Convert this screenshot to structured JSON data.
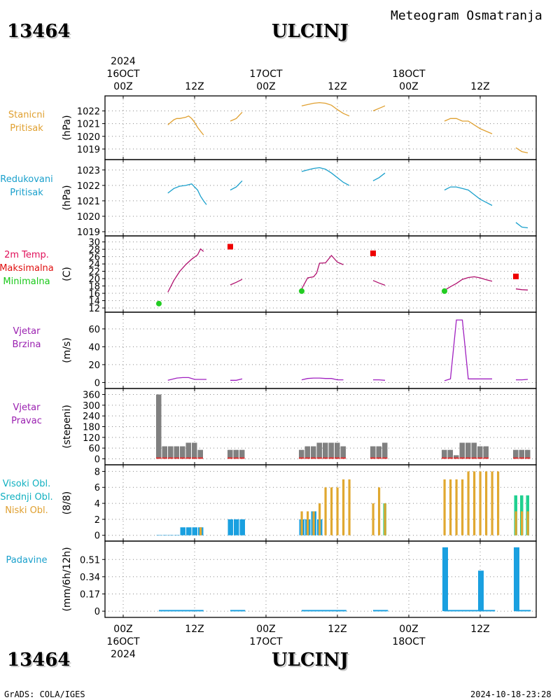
{
  "header": {
    "station_id": "13464",
    "station_name": "ULCINJ",
    "subtitle": "Meteogram Osmatranja"
  },
  "footer": {
    "station_id": "13464",
    "station_name": "ULCINJ",
    "credit": "GrADS: COLA/IGES",
    "timestamp": "2024-10-18-23:28"
  },
  "time_axis": {
    "top_year": "2024",
    "bottom_year": "2024",
    "ticks": [
      {
        "h": 0,
        "hour": "00Z",
        "date": "16OCT"
      },
      {
        "h": 12,
        "hour": "12Z",
        "date": ""
      },
      {
        "h": 24,
        "hour": "00Z",
        "date": "17OCT"
      },
      {
        "h": 36,
        "hour": "12Z",
        "date": ""
      },
      {
        "h": 48,
        "hour": "00Z",
        "date": "18OCT"
      },
      {
        "h": 60,
        "hour": "12Z",
        "date": ""
      }
    ]
  },
  "panels": [
    {
      "key": "stanicni",
      "labels": [
        "Stanicni",
        "Pritisak"
      ],
      "colors": [
        "#e0a030",
        "#e0a030"
      ],
      "unit": "(hPa)"
    },
    {
      "key": "redukovani",
      "labels": [
        "Redukovani",
        "Pritisak"
      ],
      "colors": [
        "#1aa0cc",
        "#1aa0cc"
      ],
      "unit": "(hPa)"
    },
    {
      "key": "temp",
      "labels": [
        "2m Temp.",
        "Maksimalna",
        "Minimalna"
      ],
      "colors": [
        "#e0105a",
        "#e01010",
        "#18c818"
      ],
      "unit": "(C)"
    },
    {
      "key": "brzina",
      "labels": [
        "Vjetar",
        "Brzina"
      ],
      "colors": [
        "#9a20b0",
        "#9a20b0"
      ],
      "unit": "(m/s)"
    },
    {
      "key": "pravac",
      "labels": [
        "Vjetar",
        "Pravac"
      ],
      "colors": [
        "#9a20b0",
        "#9a20b0"
      ],
      "unit": "(stepeni)"
    },
    {
      "key": "oblaci",
      "labels": [
        "Visoki Obl.",
        "Srednji Obl.",
        "Niski Obl."
      ],
      "colors": [
        "#10b0c0",
        "#10b0c0",
        "#e0a030"
      ],
      "unit": "(8/8)"
    },
    {
      "key": "padavine",
      "labels": [
        "Padavine"
      ],
      "colors": [
        "#1aa0cc"
      ],
      "unit": "(mm/6h/12h)"
    }
  ],
  "colors": {
    "station_pressure": "#e0a030",
    "msl_pressure": "#1aa0cc",
    "temperature": "#b0106e",
    "tmax_marker": "#ee0000",
    "tmin_marker": "#22cc22",
    "wind_speed": "#a020c0",
    "wind_dir_bar": "#808080",
    "wind_dir_low": "#e03030",
    "cloud_low": "#e0a830",
    "cloud_mid": "#1aa0e0",
    "cloud_high": "#20d090",
    "precip": "#1aa0e0"
  },
  "chart_data": [
    {
      "type": "line",
      "key": "stanicni",
      "ylabel": "(hPa)",
      "ylim": [
        1018.5,
        1022.85
      ],
      "yticks": [
        1019,
        1020,
        1021,
        1022
      ],
      "segments": [
        [
          [
            7.5,
            1020.9
          ],
          [
            8,
            1021.1
          ],
          [
            8.5,
            1021.3
          ],
          [
            9,
            1021.4
          ],
          [
            9.5,
            1021.4
          ],
          [
            10,
            1021.45
          ],
          [
            10.5,
            1021.5
          ],
          [
            11,
            1021.6
          ],
          [
            11.5,
            1021.4
          ],
          [
            12,
            1021.1
          ],
          [
            12.5,
            1020.7
          ],
          [
            13,
            1020.4
          ],
          [
            13.5,
            1020.1
          ]
        ],
        [
          [
            18,
            1021.2
          ],
          [
            19,
            1021.4
          ],
          [
            20,
            1021.9
          ]
        ],
        [
          [
            30,
            1022.4
          ],
          [
            31,
            1022.5
          ],
          [
            32,
            1022.6
          ],
          [
            33,
            1022.65
          ],
          [
            34,
            1022.6
          ],
          [
            35,
            1022.45
          ],
          [
            36,
            1022.1
          ],
          [
            37,
            1021.8
          ],
          [
            38,
            1021.6
          ]
        ],
        [
          [
            42,
            1022.0
          ],
          [
            43,
            1022.2
          ],
          [
            44,
            1022.4
          ]
        ],
        [
          [
            54,
            1021.2
          ],
          [
            55,
            1021.4
          ],
          [
            56,
            1021.4
          ],
          [
            57,
            1021.2
          ],
          [
            58,
            1021.2
          ],
          [
            59,
            1020.9
          ],
          [
            60,
            1020.6
          ],
          [
            61,
            1020.4
          ],
          [
            62,
            1020.2
          ]
        ],
        [
          [
            66,
            1019.1
          ],
          [
            67,
            1018.8
          ],
          [
            68,
            1018.7
          ]
        ]
      ]
    },
    {
      "type": "line",
      "key": "redukovani",
      "ylabel": "(hPa)",
      "ylim": [
        1019,
        1023.4
      ],
      "yticks": [
        1019,
        1020,
        1021,
        1022,
        1023
      ],
      "segments": [
        [
          [
            7.5,
            1021.5
          ],
          [
            8.5,
            1021.8
          ],
          [
            9.5,
            1021.95
          ],
          [
            10.5,
            1022.0
          ],
          [
            11.5,
            1022.1
          ],
          [
            12.5,
            1021.7
          ],
          [
            13,
            1021.3
          ],
          [
            13.5,
            1021.0
          ],
          [
            14,
            1020.75
          ]
        ],
        [
          [
            18,
            1021.7
          ],
          [
            19,
            1021.9
          ],
          [
            20,
            1022.3
          ]
        ],
        [
          [
            30,
            1022.9
          ],
          [
            31,
            1023.0
          ],
          [
            32,
            1023.1
          ],
          [
            33,
            1023.15
          ],
          [
            34,
            1023.05
          ],
          [
            35,
            1022.8
          ],
          [
            36,
            1022.5
          ],
          [
            37,
            1022.2
          ],
          [
            38,
            1022.0
          ]
        ],
        [
          [
            42,
            1022.3
          ],
          [
            43,
            1022.5
          ],
          [
            44,
            1022.8
          ]
        ],
        [
          [
            54,
            1021.7
          ],
          [
            55,
            1021.9
          ],
          [
            56,
            1021.9
          ],
          [
            57,
            1021.8
          ],
          [
            58,
            1021.7
          ],
          [
            59,
            1021.4
          ],
          [
            60,
            1021.1
          ],
          [
            61,
            1020.9
          ],
          [
            62,
            1020.7
          ]
        ],
        [
          [
            66,
            1019.6
          ],
          [
            67,
            1019.3
          ],
          [
            68,
            1019.25
          ]
        ]
      ]
    },
    {
      "type": "line",
      "key": "temp",
      "ylabel": "(C)",
      "ylim": [
        12,
        30.5
      ],
      "yticks": [
        12,
        14,
        16,
        18,
        20,
        22,
        24,
        26,
        28,
        30
      ],
      "segments": [
        [
          [
            7.5,
            16.3
          ],
          [
            8.5,
            19.5
          ],
          [
            9.5,
            22
          ],
          [
            10.5,
            23.8
          ],
          [
            11.5,
            25.3
          ],
          [
            12.5,
            26.5
          ],
          [
            13,
            28.1
          ],
          [
            13.5,
            27.4
          ]
        ],
        [
          [
            18,
            18.3
          ],
          [
            19,
            19.0
          ],
          [
            20,
            19.8
          ]
        ],
        [
          [
            30,
            17.2
          ],
          [
            31,
            20.2
          ],
          [
            32,
            20.5
          ],
          [
            32.5,
            21.5
          ],
          [
            33,
            24.2
          ],
          [
            34,
            24.3
          ],
          [
            35,
            26.3
          ],
          [
            36,
            24.5
          ],
          [
            37,
            23.8
          ]
        ],
        [
          [
            42,
            19.5
          ],
          [
            43,
            18.8
          ],
          [
            44,
            18.2
          ]
        ],
        [
          [
            54,
            16.8
          ],
          [
            55,
            17.8
          ],
          [
            56,
            18.7
          ],
          [
            57,
            19.8
          ],
          [
            58,
            20.3
          ],
          [
            59,
            20.5
          ],
          [
            60,
            20.2
          ],
          [
            61,
            19.7
          ],
          [
            62,
            19.3
          ]
        ],
        [
          [
            66,
            17.2
          ],
          [
            67,
            17.0
          ],
          [
            68,
            16.9
          ]
        ]
      ],
      "tmax": [
        [
          18,
          28.7
        ],
        [
          42,
          26.9
        ],
        [
          66,
          20.6
        ]
      ],
      "tmin": [
        [
          6,
          13.2
        ],
        [
          30,
          16.6
        ],
        [
          54,
          16.6
        ]
      ]
    },
    {
      "type": "line",
      "key": "brzina",
      "ylabel": "(m/s)",
      "ylim": [
        -2,
        74
      ],
      "yticks": [
        0,
        20,
        40,
        60
      ],
      "segments": [
        [
          [
            7.5,
            2.5
          ],
          [
            9,
            5
          ],
          [
            10,
            5.5
          ],
          [
            11,
            5.5
          ],
          [
            12,
            3.5
          ],
          [
            13,
            3.5
          ],
          [
            14,
            3.5
          ]
        ],
        [
          [
            18,
            2.5
          ],
          [
            19,
            2.5
          ],
          [
            20,
            4
          ]
        ],
        [
          [
            30,
            3
          ],
          [
            31,
            4.5
          ],
          [
            32,
            5
          ],
          [
            33,
            5
          ],
          [
            34,
            4.5
          ],
          [
            35,
            4.5
          ],
          [
            36,
            3
          ],
          [
            37,
            3
          ]
        ],
        [
          [
            42,
            3
          ],
          [
            43,
            3
          ],
          [
            44,
            2.5
          ]
        ],
        [
          [
            54,
            2
          ],
          [
            55,
            4
          ],
          [
            56,
            70
          ],
          [
            57,
            70
          ],
          [
            58,
            4
          ],
          [
            59,
            4
          ],
          [
            60,
            4
          ],
          [
            61,
            4
          ],
          [
            62,
            4
          ]
        ],
        [
          [
            66,
            3
          ],
          [
            67,
            3
          ],
          [
            68,
            3.5
          ]
        ]
      ]
    },
    {
      "type": "bar",
      "key": "pravac",
      "ylabel": "(stepeni)",
      "ylim": [
        -10,
        370
      ],
      "yticks": [
        0,
        60,
        120,
        180,
        240,
        300,
        360
      ],
      "bars": [
        [
          6,
          360
        ],
        [
          7,
          70
        ],
        [
          8,
          70
        ],
        [
          9,
          70
        ],
        [
          10,
          70
        ],
        [
          11,
          90
        ],
        [
          12,
          90
        ],
        [
          13,
          50
        ],
        [
          18,
          50
        ],
        [
          19,
          50
        ],
        [
          20,
          50
        ],
        [
          30,
          50
        ],
        [
          31,
          70
        ],
        [
          32,
          70
        ],
        [
          33,
          90
        ],
        [
          34,
          90
        ],
        [
          35,
          90
        ],
        [
          36,
          90
        ],
        [
          37,
          70
        ],
        [
          42,
          70
        ],
        [
          43,
          70
        ],
        [
          44,
          90
        ],
        [
          54,
          50
        ],
        [
          55,
          50
        ],
        [
          56,
          20
        ],
        [
          57,
          90
        ],
        [
          58,
          90
        ],
        [
          59,
          90
        ],
        [
          60,
          70
        ],
        [
          61,
          70
        ],
        [
          66,
          50
        ],
        [
          67,
          50
        ],
        [
          68,
          50
        ]
      ]
    },
    {
      "type": "bar",
      "key": "oblaci",
      "ylabel": "(8/8)",
      "ylim": [
        -0.2,
        8.3
      ],
      "yticks": [
        0,
        2,
        4,
        6,
        8
      ],
      "low": [
        [
          13,
          1
        ],
        [
          30,
          3
        ],
        [
          31,
          3
        ],
        [
          32,
          3
        ],
        [
          33,
          4
        ],
        [
          34,
          6
        ],
        [
          35,
          6
        ],
        [
          36,
          6
        ],
        [
          37,
          7
        ],
        [
          38,
          7
        ],
        [
          42,
          4
        ],
        [
          43,
          6
        ],
        [
          44,
          4
        ],
        [
          54,
          7
        ],
        [
          55,
          7
        ],
        [
          56,
          7
        ],
        [
          57,
          7
        ],
        [
          58,
          8
        ],
        [
          59,
          8
        ],
        [
          60,
          8
        ],
        [
          61,
          8
        ],
        [
          62,
          8
        ],
        [
          63,
          8
        ],
        [
          66,
          3
        ],
        [
          67,
          3
        ],
        [
          68,
          3
        ]
      ],
      "mid": [
        [
          6,
          0
        ],
        [
          7,
          0
        ],
        [
          8,
          0
        ],
        [
          9,
          0
        ],
        [
          10,
          1
        ],
        [
          11,
          1
        ],
        [
          12,
          1
        ],
        [
          13,
          1
        ],
        [
          18,
          2
        ],
        [
          19,
          2
        ],
        [
          20,
          2
        ],
        [
          30,
          2
        ],
        [
          31,
          2
        ],
        [
          32,
          3
        ],
        [
          33,
          2
        ]
      ],
      "high": [
        [
          44,
          4
        ],
        [
          66,
          5
        ],
        [
          67,
          5
        ],
        [
          68,
          5
        ]
      ]
    },
    {
      "type": "bar",
      "key": "padavine",
      "ylabel": "(mm/6h/12h)",
      "ylim": [
        -0.02,
        0.65
      ],
      "yticks": [
        0,
        0.17,
        0.34,
        0.51
      ],
      "ytick_labels": [
        "0",
        "0.17",
        "0.34",
        "0.51"
      ],
      "bars": [
        [
          54,
          0.63
        ],
        [
          60,
          0.4
        ],
        [
          66,
          0.63
        ]
      ],
      "trace_ranges": [
        [
          6,
          13.5
        ],
        [
          18,
          20.5
        ],
        [
          30,
          37.5
        ],
        [
          42,
          44.5
        ],
        [
          54,
          62.5
        ],
        [
          66,
          68.5
        ]
      ]
    }
  ]
}
